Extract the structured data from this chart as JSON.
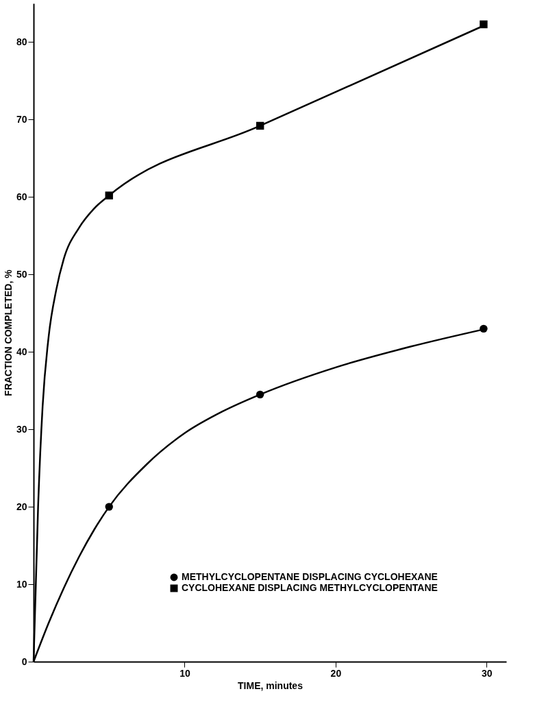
{
  "chart_data": {
    "type": "line",
    "xlabel": "TIME, minutes",
    "ylabel": "FRACTION COMPLETED, %",
    "xlim": [
      0,
      31.3
    ],
    "ylim": [
      0,
      85
    ],
    "xticks": [
      10,
      20,
      30
    ],
    "yticks": [
      0,
      10,
      20,
      30,
      40,
      50,
      60,
      70,
      80
    ],
    "grid": false,
    "legend": "bottom right",
    "line_style": "solid",
    "series": [
      {
        "color": "#000000",
        "x": [
          0,
          0.3,
          0.6,
          1,
          1.5,
          2,
          3,
          4,
          5,
          15,
          30
        ],
        "values": [
          0,
          20,
          33,
          42,
          48,
          52,
          56,
          58.5,
          60.2,
          69.2,
          82.3
        ]
      },
      {
        "color": "#000000",
        "x": [
          0,
          1,
          2,
          3,
          4,
          5,
          7.5,
          10,
          12.5,
          15,
          20,
          25,
          30
        ],
        "values": [
          0,
          5,
          9.5,
          13.5,
          17,
          20,
          25.5,
          29.5,
          32.3,
          34.5,
          38,
          40.7,
          43
        ]
      },
      {
        "type": "scatter",
        "name": "METHYLCYCLOPENTANE DISPLACING CYCLOHEXANE",
        "color": "#000000",
        "marker": "circle",
        "x": [
          5,
          15,
          29.8
        ],
        "values": [
          20,
          34.5,
          43
        ]
      },
      {
        "type": "scatter",
        "name": "CYCLOHEXANE DISPLACING METHYLCYCLOPENTANE",
        "color": "#000000",
        "marker": "square",
        "x": [
          5,
          15,
          29.8
        ],
        "values": [
          60.2,
          69.2,
          82.3
        ]
      }
    ]
  }
}
